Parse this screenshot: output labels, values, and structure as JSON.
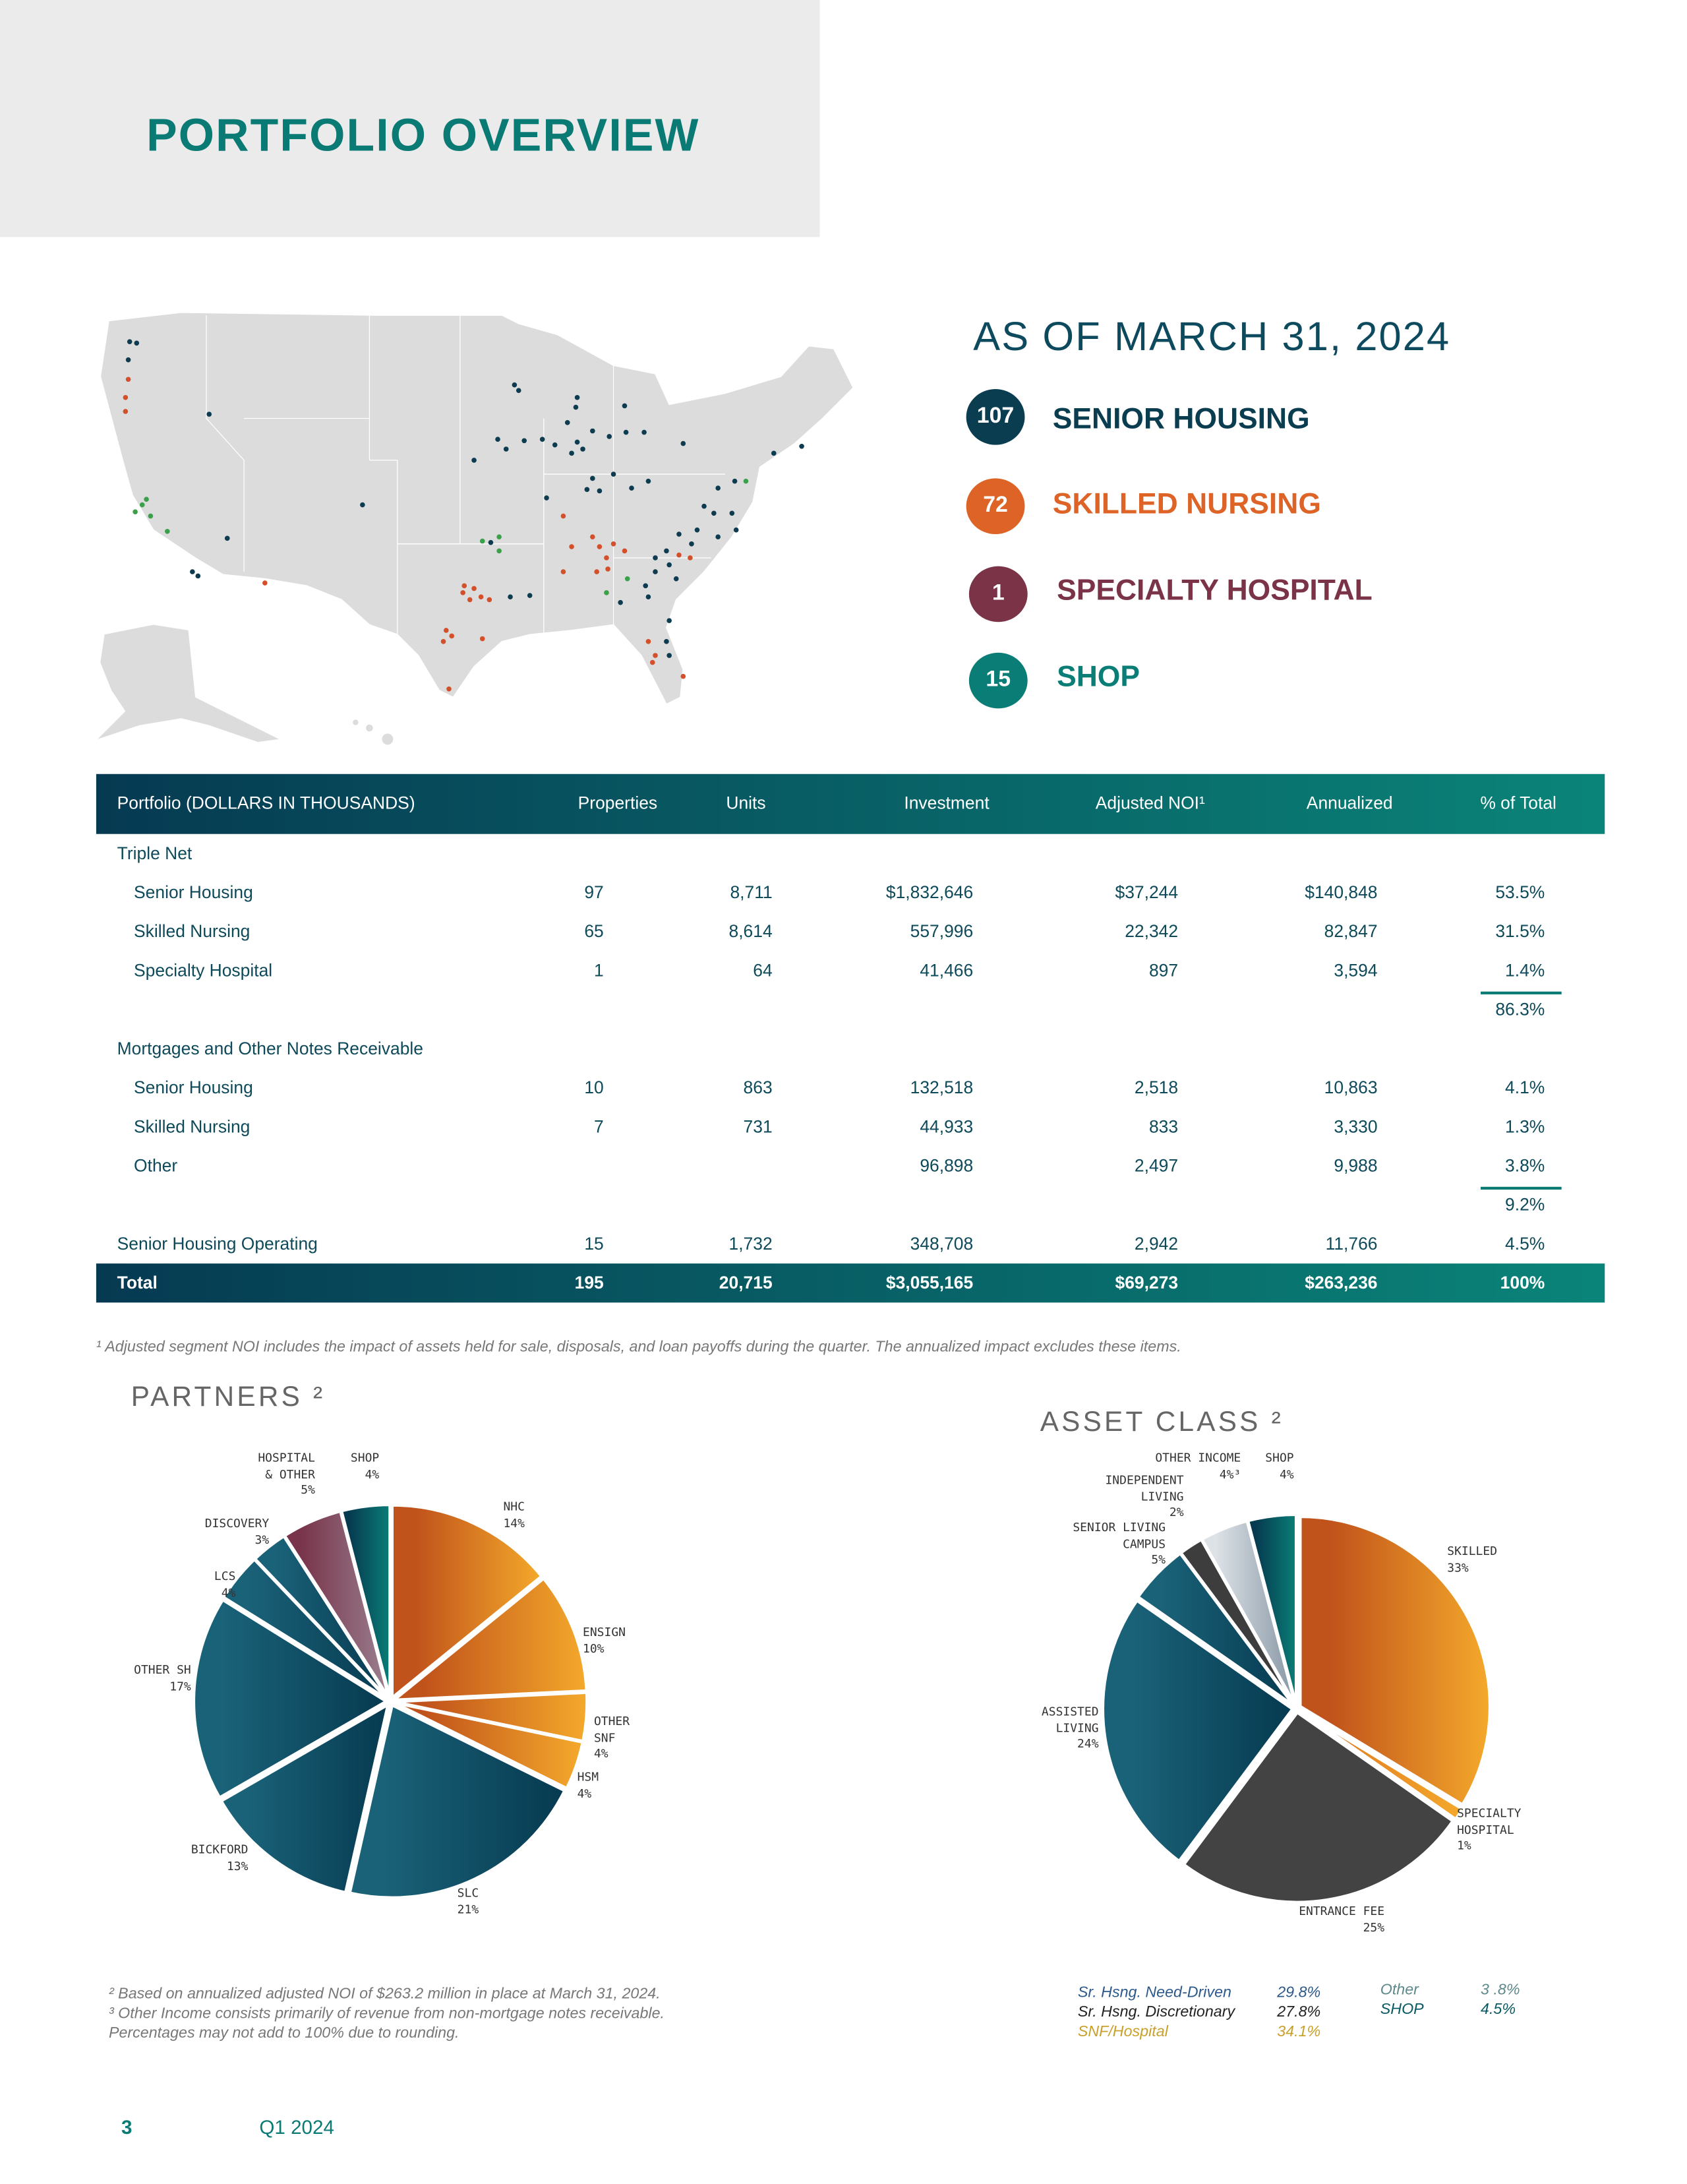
{
  "page_title": "PORTFOLIO OVERVIEW",
  "as_of": "AS OF MARCH 31, 2024",
  "summary": [
    {
      "count": "107",
      "label": "SENIOR HOUSING",
      "color": "#0b3d50"
    },
    {
      "count": "72",
      "label": "SKILLED NURSING",
      "color": "#dd6326"
    },
    {
      "count": "1",
      "label": "SPECIALTY HOSPITAL",
      "color": "#7a3347"
    },
    {
      "count": "15",
      "label": "SHOP",
      "color": "#0a7d76"
    }
  ],
  "map": {
    "marker_colors": {
      "senior_housing": "#0d3b4f",
      "skilled_nursing": "#d4502a",
      "shop": "#3aa04a"
    }
  },
  "table": {
    "headers": [
      "Portfolio  (DOLLARS IN THOUSANDS)",
      "Properties",
      "Units",
      "Investment",
      "Adjusted NOI¹",
      "Annualized",
      "% of Total"
    ],
    "triple_net_label": "Triple Net",
    "triple_net": [
      {
        "name": "Senior Housing",
        "properties": "97",
        "units": "8,711",
        "investment": "$1,832,646",
        "noi": "$37,244",
        "annualized": "$140,848",
        "pct": "53.5%"
      },
      {
        "name": "Skilled Nursing",
        "properties": "65",
        "units": "8,614",
        "investment": "557,996",
        "noi": "22,342",
        "annualized": "82,847",
        "pct": "31.5%"
      },
      {
        "name": "Specialty Hospital",
        "properties": "1",
        "units": "64",
        "investment": "41,466",
        "noi": "897",
        "annualized": "3,594",
        "pct": "1.4%"
      }
    ],
    "triple_net_subtotal": "86.3%",
    "mortgages_label": "Mortgages and Other Notes Receivable",
    "mortgages": [
      {
        "name": "Senior Housing",
        "properties": "10",
        "units": "863",
        "investment": "132,518",
        "noi": "2,518",
        "annualized": "10,863",
        "pct": "4.1%"
      },
      {
        "name": "Skilled Nursing",
        "properties": "7",
        "units": "731",
        "investment": "44,933",
        "noi": "833",
        "annualized": "3,330",
        "pct": "1.3%"
      },
      {
        "name": "Other",
        "properties": "",
        "units": "",
        "investment": "96,898",
        "noi": "2,497",
        "annualized": "9,988",
        "pct": "3.8%"
      }
    ],
    "mortgages_subtotal": "9.2%",
    "shop": {
      "name": "Senior Housing Operating",
      "properties": "15",
      "units": "1,732",
      "investment": "348,708",
      "noi": "2,942",
      "annualized": "11,766",
      "pct": "4.5%"
    },
    "total": {
      "name": "Total",
      "properties": "195",
      "units": "20,715",
      "investment": "$3,055,165",
      "noi": "$69,273",
      "annualized": "$263,236",
      "pct": "100%"
    }
  },
  "footnote1": "¹ Adjusted segment NOI includes the impact of assets held for sale, disposals, and loan payoffs during the quarter. The annualized impact excludes these items.",
  "chart_data": [
    {
      "type": "pie",
      "title": "PARTNERS ²",
      "slices": [
        {
          "label": [
            "NHC"
          ],
          "pct_label": "14%",
          "value": 14,
          "colors": [
            "#c0521b",
            "#f4a92b"
          ]
        },
        {
          "label": [
            "ENSIGN"
          ],
          "pct_label": "10%",
          "value": 10,
          "colors": [
            "#c0521b",
            "#f4a92b"
          ]
        },
        {
          "label": [
            "OTHER",
            "SNF"
          ],
          "pct_label": "4%",
          "value": 4,
          "colors": [
            "#c0521b",
            "#f4a92b"
          ]
        },
        {
          "label": [
            "HSM"
          ],
          "pct_label": "4%",
          "value": 4,
          "colors": [
            "#c0521b",
            "#f4a92b"
          ]
        },
        {
          "label": [
            "SLC"
          ],
          "pct_label": "21%",
          "value": 21,
          "colors": [
            "#1a6278",
            "#063a50"
          ]
        },
        {
          "label": [
            "BICKFORD"
          ],
          "pct_label": "13%",
          "value": 13,
          "colors": [
            "#1a6278",
            "#063a50"
          ]
        },
        {
          "label": [
            "OTHER SH"
          ],
          "pct_label": "17%",
          "value": 17,
          "colors": [
            "#1a6278",
            "#063a50"
          ]
        },
        {
          "label": [
            "LCS"
          ],
          "pct_label": "4%",
          "value": 4,
          "colors": [
            "#1a6278",
            "#063a50"
          ]
        },
        {
          "label": [
            "DISCOVERY"
          ],
          "pct_label": "3%",
          "value": 3,
          "colors": [
            "#1a6278",
            "#063a50"
          ]
        },
        {
          "label": [
            "HOSPITAL",
            "& OTHER"
          ],
          "pct_label": "5%",
          "value": 5,
          "colors": [
            "#78344a",
            "#9a8090"
          ]
        },
        {
          "label": [
            "SHOP"
          ],
          "pct_label": "4%",
          "value": 4,
          "colors": [
            "#063a50",
            "#0a7d76"
          ]
        }
      ]
    },
    {
      "type": "pie",
      "title": "ASSET  CLASS ²",
      "slices": [
        {
          "label": [
            "SKILLED"
          ],
          "pct_label": "33%",
          "value": 33,
          "colors": [
            "#c0521b",
            "#f4a92b"
          ]
        },
        {
          "label": [
            "SPECIALTY",
            "HOSPITAL"
          ],
          "pct_label": "1%",
          "value": 1,
          "colors": [
            "#e07a20",
            "#f4a92b"
          ]
        },
        {
          "label": [
            "ENTRANCE FEE"
          ],
          "pct_label": "25%",
          "value": 25,
          "colors": [
            "#434343",
            "#434343"
          ]
        },
        {
          "label": [
            "ASSISTED",
            "LIVING"
          ],
          "pct_label": "24%",
          "value": 24,
          "colors": [
            "#1a6278",
            "#063a50"
          ]
        },
        {
          "label": [
            "SENIOR LIVING",
            "CAMPUS"
          ],
          "pct_label": "5%",
          "value": 5,
          "colors": [
            "#1a6278",
            "#063a50"
          ]
        },
        {
          "label": [
            "INDEPENDENT",
            "LIVING"
          ],
          "pct_label": "2%",
          "value": 2,
          "colors": [
            "#3d3d3d",
            "#3d3d3d"
          ]
        },
        {
          "label": [
            "OTHER INCOME"
          ],
          "pct_label": "4%³",
          "value": 4,
          "colors": [
            "#dde2e7",
            "#8797a4"
          ]
        },
        {
          "label": [
            "SHOP"
          ],
          "pct_label": "4%",
          "value": 4,
          "colors": [
            "#063a50",
            "#0a7d76"
          ]
        }
      ]
    }
  ],
  "footnotes": [
    "²  Based on annualized adjusted NOI of $263.2 million in place at March 31, 2024.",
    "³ Other Income consists primarily of revenue from non-mortgage notes receivable.",
    "  Percentages may not add to 100% due to rounding."
  ],
  "asset_legend": [
    {
      "label": "Sr. Hsng. Need-Driven",
      "value": "29.8%",
      "color": "#2d5a8c"
    },
    {
      "label": "Sr. Hsng. Discretionary",
      "value": "27.8%",
      "color": "#222222"
    },
    {
      "label": "SNF/Hospital",
      "value": "34.1%",
      "color": "#c8a02a"
    },
    {
      "label": "Other",
      "value": "3 .8%",
      "color": "#5e8a8c"
    },
    {
      "label": "SHOP",
      "value": "4.5%",
      "color": "#0a5a64"
    }
  ],
  "page_number": "3",
  "period": "Q1 2024"
}
